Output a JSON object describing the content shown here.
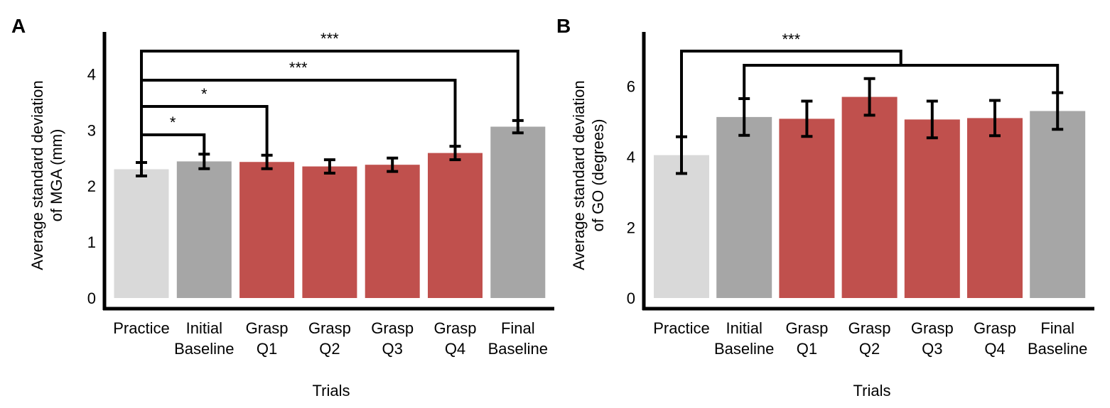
{
  "chart_data": [
    {
      "type": "bar",
      "panel_label": "A",
      "ylabel_line1": "Average standard deviation",
      "ylabel_line2": "of MGA (mm)",
      "xlabel": "Trials",
      "ylim": [
        0,
        4.6
      ],
      "yticks": [
        "0",
        "1",
        "2",
        "3",
        "4"
      ],
      "categories": [
        [
          "Practice"
        ],
        [
          "Initial",
          "Baseline"
        ],
        [
          "Grasp",
          "Q1"
        ],
        [
          "Grasp",
          "Q2"
        ],
        [
          "Grasp",
          "Q3"
        ],
        [
          "Grasp",
          "Q4"
        ],
        [
          "Final",
          "Baseline"
        ]
      ],
      "values": [
        2.3,
        2.44,
        2.43,
        2.35,
        2.38,
        2.59,
        3.06
      ],
      "errors": [
        0.12,
        0.13,
        0.12,
        0.12,
        0.12,
        0.12,
        0.11
      ],
      "bar_colors": [
        "#d9d9d9",
        "#a6a6a6",
        "#c0504d",
        "#c0504d",
        "#c0504d",
        "#c0504d",
        "#a6a6a6"
      ],
      "significance": [
        {
          "from": 0,
          "to": 1,
          "label": "*"
        },
        {
          "from": 0,
          "to": 2,
          "label": "*"
        },
        {
          "from": 0,
          "to": 5,
          "label": "***"
        },
        {
          "from": 0,
          "to": 6,
          "label": "***"
        }
      ]
    },
    {
      "type": "bar",
      "panel_label": "B",
      "ylabel_line1": "Average standard deviation",
      "ylabel_line2": "of GO (degrees)",
      "xlabel": "Trials",
      "ylim": [
        0,
        7.3
      ],
      "yticks": [
        "0",
        "2",
        "4",
        "6"
      ],
      "categories": [
        [
          "Practice"
        ],
        [
          "Initial",
          "Baseline"
        ],
        [
          "Grasp",
          "Q1"
        ],
        [
          "Grasp",
          "Q2"
        ],
        [
          "Grasp",
          "Q3"
        ],
        [
          "Grasp",
          "Q4"
        ],
        [
          "Final",
          "Baseline"
        ]
      ],
      "values": [
        4.05,
        5.13,
        5.08,
        5.7,
        5.06,
        5.1,
        5.3
      ],
      "errors": [
        0.52,
        0.52,
        0.5,
        0.52,
        0.52,
        0.5,
        0.52
      ],
      "bar_colors": [
        "#d9d9d9",
        "#a6a6a6",
        "#c0504d",
        "#c0504d",
        "#c0504d",
        "#c0504d",
        "#a6a6a6"
      ],
      "significance": [
        {
          "from": 0,
          "to": 1,
          "to_end": 6,
          "label": "***"
        }
      ]
    }
  ]
}
